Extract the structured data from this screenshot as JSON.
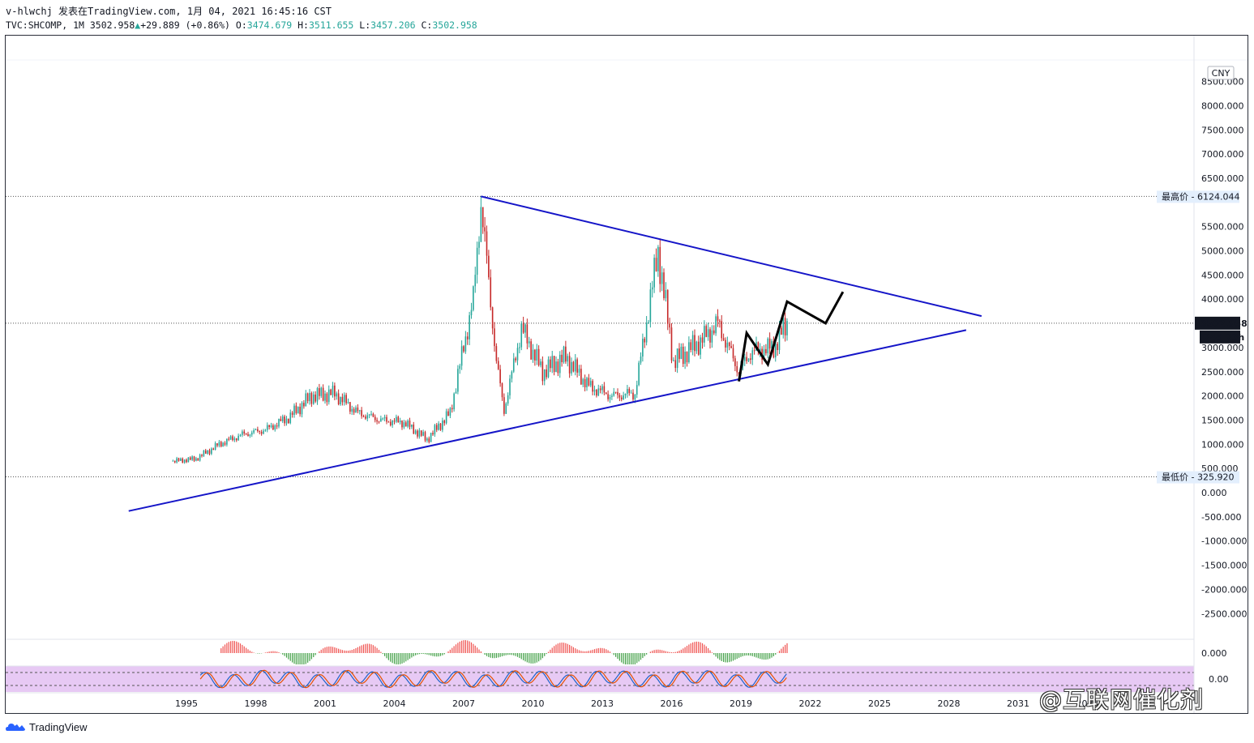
{
  "header": {
    "line1": "v-hlwchj 发表在TradingView.com, 1月 04, 2021 16:45:16 CST",
    "symbol": "TVC:SHCOMP, 1M",
    "last": "3502.958",
    "change": "+29.889 (+0.86%)",
    "o_label": "O:",
    "o_value": "3474.679",
    "h_label": "H:",
    "h_value": "3511.655",
    "l_label": "L:",
    "l_value": "3457.206",
    "c_label": "C:",
    "c_value": "3502.958"
  },
  "axis": {
    "currency": "CNY",
    "price_labels": [
      "8500.000",
      "8000.000",
      "7500.000",
      "7000.000",
      "6500.000",
      "5500.000",
      "5000.000",
      "4500.000",
      "4000.000",
      "3000.000",
      "2500.000",
      "2000.000",
      "1500.000",
      "1000.000",
      "500.000",
      "0.000",
      "-500.000",
      "-1000.000",
      "-1500.000",
      "-2000.000",
      "-2500.000"
    ],
    "highest_label": "最高价",
    "highest_value": "6124.044",
    "lowest_label": "最低价",
    "lowest_value": "325.920",
    "last_price": "3502.958",
    "countdown": "24d 23h",
    "osc_zero": "0.000",
    "stoch_value": "0.00"
  },
  "xaxis_labels": [
    "1995",
    "1998",
    "2001",
    "2004",
    "2007",
    "2010",
    "2013",
    "2016",
    "2019",
    "2022",
    "2025",
    "2028",
    "2031",
    "2034"
  ],
  "footer": {
    "brand": "TradingView"
  },
  "watermark": "@互联网催化剂",
  "colors": {
    "up": "#26a69a",
    "down": "#ef5350",
    "candle": "#c62828",
    "trend": "#1515c8",
    "projection": "#000000",
    "stoch_band": "#e7c9f4"
  },
  "chart_data": {
    "type": "candlestick",
    "title": "",
    "xlabel": "",
    "ylabel": "",
    "ylim": [
      -3000,
      8700
    ],
    "x_range": [
      "1992-01",
      "2034-12"
    ],
    "highest": 6124.044,
    "lowest": 325.92,
    "last": 3502.958,
    "series_close_yearly": [
      {
        "x": "1994-06",
        "y": 650
      },
      {
        "x": "1995-06",
        "y": 700
      },
      {
        "x": "1996-06",
        "y": 1000
      },
      {
        "x": "1997-06",
        "y": 1200
      },
      {
        "x": "1998-06",
        "y": 1300
      },
      {
        "x": "1999-06",
        "y": 1550
      },
      {
        "x": "2000-06",
        "y": 2000
      },
      {
        "x": "2001-06",
        "y": 2050
      },
      {
        "x": "2002-06",
        "y": 1650
      },
      {
        "x": "2003-06",
        "y": 1500
      },
      {
        "x": "2004-06",
        "y": 1450
      },
      {
        "x": "2005-06",
        "y": 1100
      },
      {
        "x": "2006-06",
        "y": 1650
      },
      {
        "x": "2007-06",
        "y": 4000
      },
      {
        "x": "2007-10",
        "y": 6000
      },
      {
        "x": "2008-06",
        "y": 2700
      },
      {
        "x": "2008-10",
        "y": 1700
      },
      {
        "x": "2009-07",
        "y": 3400
      },
      {
        "x": "2010-06",
        "y": 2500
      },
      {
        "x": "2011-06",
        "y": 2800
      },
      {
        "x": "2012-06",
        "y": 2200
      },
      {
        "x": "2013-06",
        "y": 2000
      },
      {
        "x": "2014-06",
        "y": 2050
      },
      {
        "x": "2015-06",
        "y": 5000
      },
      {
        "x": "2016-02",
        "y": 2700
      },
      {
        "x": "2017-06",
        "y": 3200
      },
      {
        "x": "2018-01",
        "y": 3500
      },
      {
        "x": "2018-12",
        "y": 2500
      },
      {
        "x": "2019-06",
        "y": 2900
      },
      {
        "x": "2020-06",
        "y": 3000
      },
      {
        "x": "2021-01",
        "y": 3502.958
      }
    ],
    "trendlines": [
      {
        "name": "upper",
        "from": {
          "x": "2007-10",
          "y": 6124
        },
        "to": {
          "x": "2029-06",
          "y": 3650
        }
      },
      {
        "name": "lower",
        "from": {
          "x": "1992-07",
          "y": -380
        },
        "to": {
          "x": "2028-10",
          "y": 3360
        }
      }
    ],
    "projection": [
      {
        "x": "2018-12",
        "y": 2300
      },
      {
        "x": "2019-04",
        "y": 3300
      },
      {
        "x": "2020-03",
        "y": 2650
      },
      {
        "x": "2021-01",
        "y": 3950
      },
      {
        "x": "2022-09",
        "y": 3500
      },
      {
        "x": "2023-06",
        "y": 4150
      }
    ]
  }
}
